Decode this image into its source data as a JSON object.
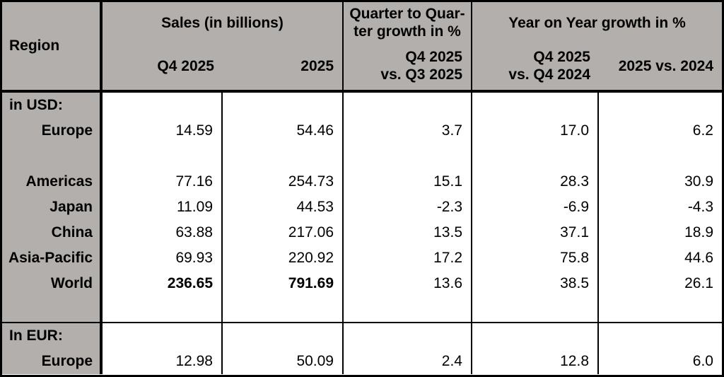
{
  "colors": {
    "header_bg": "#b2afac",
    "border": "#000000",
    "body_bg": "#ffffff",
    "text": "#000000"
  },
  "table": {
    "header": {
      "region": "Region",
      "sales": {
        "title": "Sales (in billions)",
        "sub_q4": "Q4 2025",
        "sub_fy": "2025"
      },
      "qtq": {
        "title_line1": "Quarter to Quar-",
        "title_line2": "ter growth in %",
        "sub_line1": "Q4 2025",
        "sub_line2": "vs. Q3 2025"
      },
      "yoy": {
        "title": "Year on Year growth in %",
        "sub1_line1": "Q4 2025",
        "sub1_line2": "vs. Q4 2024",
        "sub2": "2025 vs. 2024"
      }
    },
    "rows": [
      {
        "type": "section",
        "label": "in USD:",
        "values": [
          "",
          "",
          "",
          "",
          ""
        ]
      },
      {
        "type": "data",
        "label": "Europe",
        "values": [
          "14.59",
          "54.46",
          "3.7",
          "17.0",
          "6.2"
        ]
      },
      {
        "type": "blank",
        "label": "",
        "values": [
          "",
          "",
          "",
          "",
          ""
        ]
      },
      {
        "type": "data",
        "label": "Americas",
        "values": [
          "77.16",
          "254.73",
          "15.1",
          "28.3",
          "30.9"
        ]
      },
      {
        "type": "data",
        "label": "Japan",
        "values": [
          "11.09",
          "44.53",
          "-2.3",
          "-6.9",
          "-4.3"
        ]
      },
      {
        "type": "data",
        "label": "China",
        "values": [
          "63.88",
          "217.06",
          "13.5",
          "37.1",
          "18.9"
        ]
      },
      {
        "type": "data",
        "label": "Asia-Pacific",
        "values": [
          "69.93",
          "220.92",
          "17.2",
          "75.8",
          "44.6"
        ]
      },
      {
        "type": "data",
        "label": "World",
        "values": [
          "236.65",
          "791.69",
          "13.6",
          "38.5",
          "26.1"
        ],
        "bold": [
          true,
          true,
          false,
          false,
          false
        ]
      },
      {
        "type": "blank",
        "label": "",
        "values": [
          "",
          "",
          "",
          "",
          ""
        ]
      },
      {
        "type": "separator"
      },
      {
        "type": "section",
        "label": "In EUR:",
        "values": [
          "",
          "",
          "",
          "",
          ""
        ]
      },
      {
        "type": "data",
        "label": "Europe",
        "values": [
          "12.98",
          "50.09",
          "2.4",
          "12.8",
          "6.0"
        ]
      }
    ]
  },
  "chart_data": {
    "type": "table",
    "columns": [
      "Region",
      "Sales (in billions) — Q4 2025",
      "Sales (in billions) — 2025",
      "Quarter to Quarter growth in % — Q4 2025 vs. Q3 2025",
      "Year on Year growth in % — Q4 2025 vs. Q4 2024",
      "Year on Year growth in % — 2025 vs. 2024"
    ],
    "sections": [
      {
        "label": "in USD:",
        "rows": [
          [
            "Europe",
            14.59,
            54.46,
            3.7,
            17.0,
            6.2
          ],
          [
            "Americas",
            77.16,
            254.73,
            15.1,
            28.3,
            30.9
          ],
          [
            "Japan",
            11.09,
            44.53,
            -2.3,
            -6.9,
            -4.3
          ],
          [
            "China",
            63.88,
            217.06,
            13.5,
            37.1,
            18.9
          ],
          [
            "Asia-Pacific",
            69.93,
            220.92,
            17.2,
            75.8,
            44.6
          ],
          [
            "World",
            236.65,
            791.69,
            13.6,
            38.5,
            26.1
          ]
        ]
      },
      {
        "label": "In EUR:",
        "rows": [
          [
            "Europe",
            12.98,
            50.09,
            2.4,
            12.8,
            6.0
          ]
        ]
      }
    ]
  }
}
